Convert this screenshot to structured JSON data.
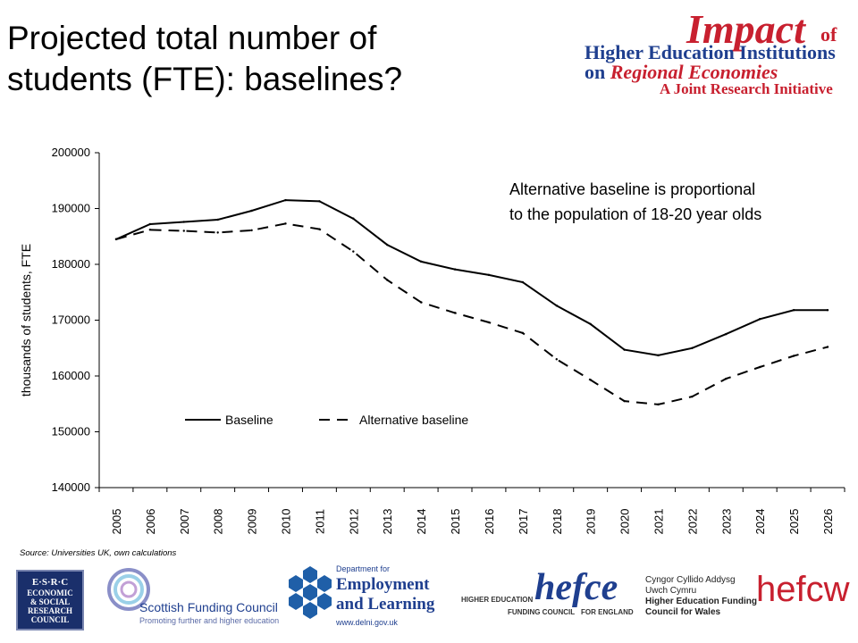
{
  "slide": {
    "title": "Projected total number of students (FTE): baselines?",
    "annotation_line1": "Alternative baseline is proportional",
    "annotation_line2": "to the population of 18-20 year olds",
    "source": "Source: Universities UK, own calculations"
  },
  "header_logo": {
    "word": "Impact",
    "of": "of",
    "line1": "Higher Education Institutions",
    "line2a": "on",
    "line2b": "Regional Economies",
    "line3": "A Joint Research Initiative",
    "colors": {
      "red": "#c8202f",
      "blue": "#1f3f8f"
    }
  },
  "footer_logos": {
    "esrc": [
      "E·S·R·C",
      "ECONOMIC",
      "& SOCIAL",
      "RESEARCH",
      "COUNCIL"
    ],
    "sfc_name": "Scottish Funding Council",
    "sfc_tag": "Promoting further and higher education",
    "del_dept": "Department for",
    "del_name1": "Employment",
    "del_name2": "and Learning",
    "del_url": "www.delni.gov.uk",
    "hefce_left": "HIGHER EDUCATION",
    "hefce_word": "hefce",
    "hefce_bottom_left": "FUNDING COUNCIL",
    "hefce_bottom_right": "FOR ENGLAND",
    "hefcw_welsh1": "Cyngor Cyllido Addysg",
    "hefcw_welsh2": "Uwch Cymru",
    "hefcw_en1": "Higher Education Funding",
    "hefcw_en2": "Council for Wales",
    "hefcw_word": "hefcw"
  },
  "chart_data": {
    "type": "line",
    "title": "",
    "xlabel": "",
    "ylabel": "thousands of students, FTE",
    "x": [
      "2005",
      "2006",
      "2007",
      "2008",
      "2009",
      "2010",
      "2011",
      "2012",
      "2013",
      "2014",
      "2015",
      "2016",
      "2017",
      "2018",
      "2019",
      "2020",
      "2021",
      "2022",
      "2023",
      "2024",
      "2025",
      "2026"
    ],
    "ylim": [
      140000,
      200000
    ],
    "yticks": [
      "140000",
      "150000",
      "160000",
      "170000",
      "180000",
      "190000",
      "200000"
    ],
    "grid": false,
    "legend_placement": "bottom-center inside plot",
    "series": [
      {
        "name": "Baseline",
        "style": "solid",
        "color": "#000000",
        "values": [
          184500,
          187200,
          187600,
          188000,
          189600,
          191500,
          191300,
          188200,
          183500,
          180500,
          179100,
          178100,
          176800,
          172600,
          169300,
          164700,
          163700,
          165000,
          167500,
          170200,
          171800,
          171800
        ]
      },
      {
        "name": "Alternative baseline",
        "style": "dashed",
        "color": "#000000",
        "values": [
          184500,
          186200,
          186000,
          185700,
          186100,
          187300,
          186300,
          182300,
          177200,
          173200,
          171300,
          169600,
          167700,
          163000,
          159300,
          155500,
          154900,
          156300,
          159500,
          161600,
          163600,
          165200
        ]
      }
    ]
  }
}
